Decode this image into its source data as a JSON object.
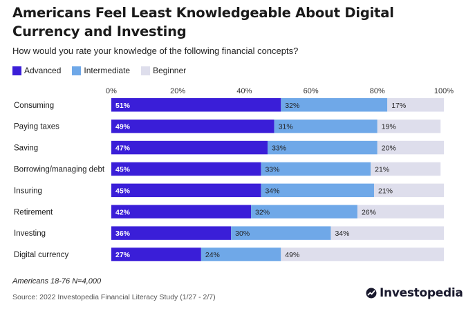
{
  "chart_data": {
    "type": "bar",
    "orientation": "horizontal",
    "stacked": true,
    "title": "Americans Feel Least Knowledgeable About Digital Currency and Investing",
    "subtitle": "How would you rate your knowledge of the following financial concepts?",
    "categories": [
      "Consuming",
      "Paying taxes",
      "Saving",
      "Borrowing/managing debt",
      "Insuring",
      "Retirement",
      "Investing",
      "Digital currency"
    ],
    "series": [
      {
        "name": "Advanced",
        "color": "#3a1ed8",
        "values": [
          51,
          49,
          47,
          45,
          45,
          42,
          36,
          27
        ]
      },
      {
        "name": "Intermediate",
        "color": "#6fa8e8",
        "values": [
          32,
          31,
          33,
          33,
          34,
          32,
          30,
          24
        ]
      },
      {
        "name": "Beginner",
        "color": "#dedeec",
        "values": [
          17,
          19,
          20,
          21,
          21,
          26,
          34,
          49
        ]
      }
    ],
    "xlim": [
      0,
      100
    ],
    "xticks": [
      "0%",
      "20%",
      "40%",
      "60%",
      "80%",
      "100%"
    ],
    "value_suffix": "%",
    "legend": "top-left",
    "grid": false
  },
  "footer": {
    "note": "Americans 18-76 N=4,000",
    "source": "Source: 2022 Investopedia Financial Literacy Study (1/27 - 2/7)",
    "brand": "Investopedia"
  }
}
